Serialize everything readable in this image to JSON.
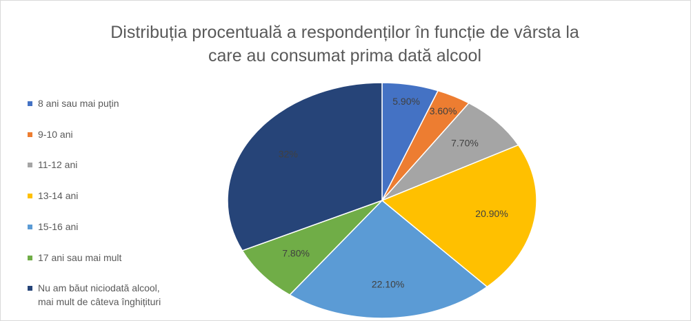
{
  "chart_data": {
    "type": "pie",
    "title": "Distribuția procentuală a respondenților în funcție de vârsta la care au consumat prima dată alcool",
    "categories": [
      "8 ani sau mai puțin",
      "9-10 ani",
      "11-12 ani",
      "13-14 ani",
      "15-16 ani",
      "17 ani sau mai mult",
      "Nu am băut niciodată alcool, mai mult de câteva înghițituri"
    ],
    "values": [
      5.9,
      3.6,
      7.7,
      20.9,
      22.1,
      7.8,
      32
    ],
    "value_labels": [
      "5.90%",
      "3.60%",
      "7.70%",
      "20.90%",
      "22.10%",
      "7.80%",
      "32%"
    ],
    "colors": [
      "#4472c4",
      "#ed7d31",
      "#a5a5a5",
      "#ffc000",
      "#5b9bd5",
      "#70ad47",
      "#264478"
    ],
    "legend": "left"
  }
}
